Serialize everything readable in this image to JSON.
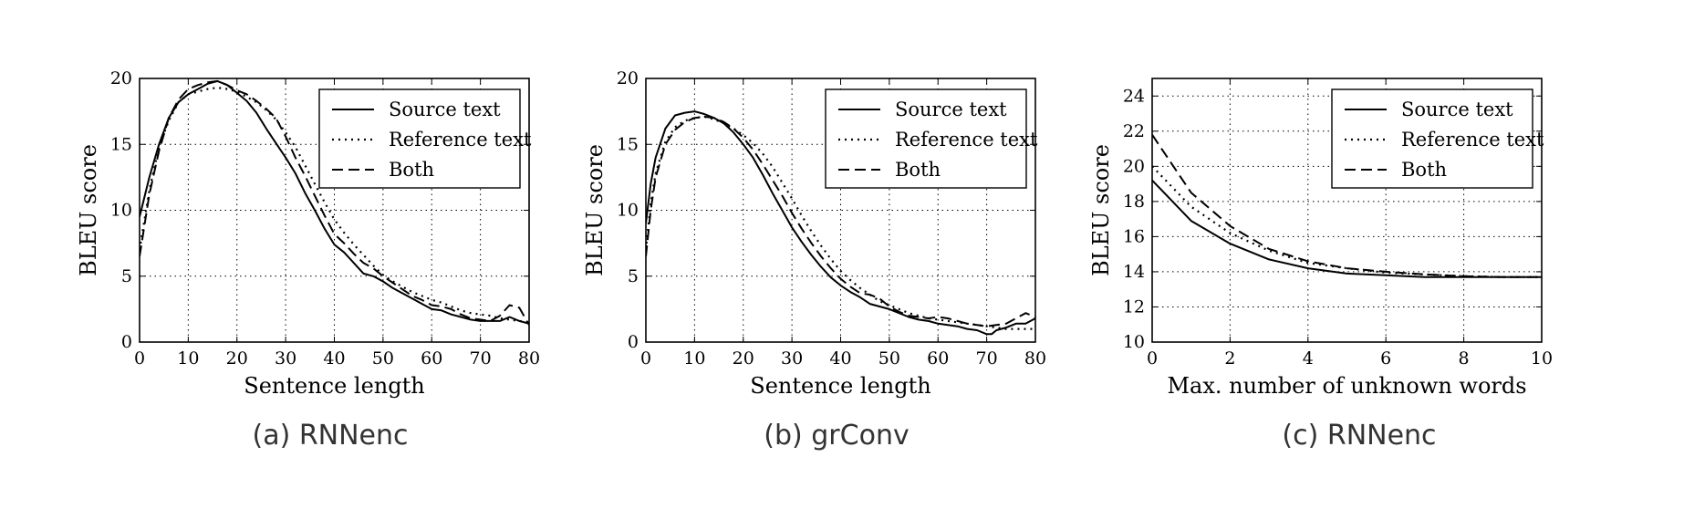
{
  "chart_data": [
    {
      "type": "line",
      "caption": "(a) RNNenc",
      "xlabel": "Sentence length",
      "ylabel": "BLEU score",
      "xlim": [
        0,
        80
      ],
      "ylim": [
        0,
        20
      ],
      "xticks": [
        0,
        10,
        20,
        30,
        40,
        50,
        60,
        70,
        80
      ],
      "yticks": [
        0,
        5,
        10,
        15,
        20
      ],
      "grid": true,
      "legend_position": "top-right",
      "series": [
        {
          "name": "Source text",
          "style": "solid",
          "x": [
            0,
            2,
            4,
            6,
            8,
            10,
            12,
            14,
            16,
            18,
            20,
            22,
            24,
            26,
            28,
            30,
            32,
            34,
            36,
            38,
            40,
            42,
            44,
            46,
            48,
            50,
            52,
            54,
            56,
            58,
            60,
            62,
            64,
            66,
            68,
            70,
            72,
            74,
            76,
            78,
            80
          ],
          "y": [
            9.5,
            12.5,
            15,
            17,
            18.2,
            18.8,
            19.2,
            19.6,
            19.8,
            19.5,
            18.9,
            18.3,
            17.4,
            16.2,
            15.1,
            14,
            12.8,
            11.3,
            10,
            8.6,
            7.4,
            6.8,
            6,
            5.2,
            5,
            4.6,
            4.1,
            3.7,
            3.3,
            2.9,
            2.5,
            2.4,
            2.1,
            1.9,
            1.7,
            1.6,
            1.6,
            1.6,
            1.9,
            1.6,
            1.4
          ]
        },
        {
          "name": "Reference text",
          "style": "dotted",
          "x": [
            0,
            2,
            4,
            6,
            8,
            10,
            12,
            14,
            16,
            18,
            20,
            22,
            24,
            26,
            28,
            30,
            32,
            34,
            36,
            38,
            40,
            42,
            44,
            46,
            48,
            50,
            52,
            54,
            56,
            58,
            60,
            62,
            64,
            66,
            68,
            70,
            72,
            74,
            76,
            78,
            80
          ],
          "y": [
            7,
            11.5,
            14.8,
            16.8,
            18.2,
            18.8,
            19,
            19.2,
            19.3,
            19.2,
            19,
            18.6,
            18.2,
            17.6,
            16.9,
            15.9,
            14.8,
            13.4,
            12,
            10.6,
            9.3,
            8.3,
            7.4,
            6.6,
            5.8,
            5.1,
            4.6,
            4.2,
            3.8,
            3.5,
            3.2,
            3,
            2.7,
            2.4,
            2.2,
            2.1,
            2,
            1.8,
            1.7,
            1.6,
            1.5
          ]
        },
        {
          "name": "Both",
          "style": "dashed",
          "x": [
            0,
            2,
            4,
            6,
            8,
            10,
            12,
            14,
            16,
            18,
            20,
            22,
            24,
            26,
            28,
            30,
            32,
            34,
            36,
            38,
            40,
            42,
            44,
            46,
            48,
            50,
            52,
            54,
            56,
            58,
            60,
            62,
            64,
            66,
            68,
            70,
            72,
            74,
            76,
            78,
            80
          ],
          "y": [
            6.5,
            11.2,
            14.5,
            17,
            18.4,
            19.2,
            19.5,
            19.7,
            19.8,
            19.5,
            19.1,
            18.8,
            18.3,
            17.7,
            17,
            15.6,
            14,
            12.6,
            11.1,
            9.6,
            8.2,
            7.5,
            6.7,
            6,
            5.6,
            5,
            4.5,
            4,
            3.5,
            3.2,
            2.8,
            2.7,
            2.5,
            2.1,
            1.8,
            1.7,
            1.6,
            2,
            2.8,
            2.6,
            1.3
          ]
        }
      ]
    },
    {
      "type": "line",
      "caption": "(b) grConv",
      "xlabel": "Sentence length",
      "ylabel": "BLEU score",
      "xlim": [
        0,
        80
      ],
      "ylim": [
        0,
        20
      ],
      "xticks": [
        0,
        10,
        20,
        30,
        40,
        50,
        60,
        70,
        80
      ],
      "yticks": [
        0,
        5,
        10,
        15,
        20
      ],
      "grid": true,
      "legend_position": "top-right",
      "series": [
        {
          "name": "Source text",
          "style": "solid",
          "x": [
            0,
            1,
            2,
            4,
            6,
            8,
            10,
            12,
            14,
            16,
            18,
            20,
            22,
            24,
            26,
            28,
            30,
            32,
            34,
            36,
            38,
            40,
            42,
            44,
            46,
            48,
            50,
            52,
            54,
            56,
            58,
            60,
            62,
            64,
            66,
            68,
            70,
            71,
            72,
            74,
            76,
            78,
            80
          ],
          "y": [
            9,
            12,
            14,
            16.2,
            17.2,
            17.4,
            17.5,
            17.3,
            17,
            16.6,
            15.9,
            15,
            14,
            12.7,
            11.3,
            10,
            8.7,
            7.6,
            6.6,
            5.7,
            4.9,
            4.3,
            3.8,
            3.4,
            2.9,
            2.7,
            2.5,
            2.2,
            1.9,
            1.7,
            1.6,
            1.4,
            1.3,
            1.2,
            1,
            0.9,
            0.6,
            0.6,
            0.9,
            1.1,
            1.4,
            1.4,
            1.8
          ]
        },
        {
          "name": "Reference text",
          "style": "dotted",
          "x": [
            0,
            1,
            2,
            4,
            6,
            8,
            10,
            12,
            14,
            16,
            18,
            20,
            22,
            24,
            26,
            28,
            30,
            32,
            34,
            36,
            38,
            40,
            42,
            44,
            46,
            48,
            50,
            52,
            54,
            56,
            58,
            60,
            62,
            64,
            66,
            68,
            70,
            72,
            74,
            76,
            78,
            80
          ],
          "y": [
            7,
            10.5,
            12.8,
            15.2,
            16.3,
            16.8,
            17,
            17.1,
            16.9,
            16.6,
            16.2,
            15.7,
            15.1,
            14.3,
            13.3,
            12.1,
            10.9,
            9.6,
            8.4,
            7.3,
            6.3,
            5.4,
            4.7,
            4.1,
            3.6,
            3.1,
            2.8,
            2.5,
            2.2,
            2,
            1.8,
            1.7,
            1.6,
            1.5,
            1.4,
            1.3,
            1.2,
            1.1,
            1,
            1,
            1,
            1
          ]
        },
        {
          "name": "Both",
          "style": "dashed",
          "x": [
            0,
            1,
            2,
            4,
            6,
            8,
            10,
            12,
            14,
            16,
            18,
            20,
            22,
            24,
            26,
            28,
            30,
            32,
            34,
            36,
            38,
            40,
            42,
            44,
            46,
            48,
            50,
            52,
            54,
            56,
            58,
            60,
            62,
            64,
            66,
            68,
            70,
            72,
            74,
            76,
            78,
            80
          ],
          "y": [
            6.5,
            10,
            12.5,
            15,
            16.1,
            16.7,
            17,
            17.1,
            17,
            16.7,
            16.2,
            15.5,
            14.6,
            13.5,
            12.3,
            11.1,
            9.8,
            8.6,
            7.5,
            6.5,
            5.6,
            4.8,
            4.2,
            3.7,
            3.6,
            3.3,
            2.7,
            2.3,
            2,
            1.9,
            1.8,
            1.9,
            1.8,
            1.6,
            1.4,
            1.3,
            1.2,
            1.3,
            1.4,
            1.8,
            2.2,
            1.9
          ]
        }
      ]
    },
    {
      "type": "line",
      "caption": "(c) RNNenc",
      "xlabel": "Max. number of unknown words",
      "ylabel": "BLEU score",
      "xlim": [
        0,
        10
      ],
      "ylim": [
        10,
        25
      ],
      "xticks": [
        0,
        2,
        4,
        6,
        8,
        10
      ],
      "yticks": [
        10,
        12,
        14,
        16,
        18,
        20,
        22,
        24
      ],
      "grid": true,
      "legend_position": "top-right",
      "series": [
        {
          "name": "Source text",
          "style": "solid",
          "x": [
            0,
            1,
            2,
            3,
            4,
            5,
            6,
            7,
            8,
            9,
            10
          ],
          "y": [
            19.2,
            16.9,
            15.6,
            14.7,
            14.2,
            13.9,
            13.8,
            13.7,
            13.7,
            13.7,
            13.7
          ]
        },
        {
          "name": "Reference text",
          "style": "dotted",
          "x": [
            0,
            1,
            2,
            3,
            4,
            5,
            6,
            7,
            8,
            9,
            10
          ],
          "y": [
            20,
            17.7,
            16.2,
            15.2,
            14.5,
            14.2,
            13.95,
            13.85,
            13.75,
            13.7,
            13.7
          ]
        },
        {
          "name": "Both",
          "style": "dashed",
          "x": [
            0,
            1,
            2,
            3,
            4,
            5,
            6,
            7,
            8,
            9,
            10
          ],
          "y": [
            21.8,
            18.5,
            16.6,
            15.3,
            14.6,
            14.2,
            14,
            13.85,
            13.75,
            13.7,
            13.7
          ]
        }
      ]
    }
  ]
}
